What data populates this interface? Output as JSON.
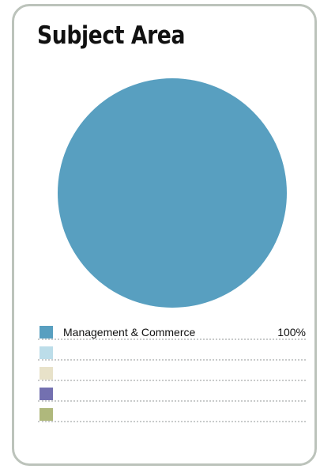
{
  "chart_data": {
    "type": "pie",
    "title": "Subject Area",
    "categories": [
      "Management & Commerce",
      "",
      "",
      "",
      ""
    ],
    "values": [
      100,
      0,
      0,
      0,
      0
    ],
    "value_labels": [
      "100%",
      "",
      "",
      "",
      ""
    ],
    "colors": [
      "#589fc0",
      "#bcdde9",
      "#e8e2c9",
      "#7370b0",
      "#afb87c"
    ],
    "legend_position": "bottom"
  }
}
